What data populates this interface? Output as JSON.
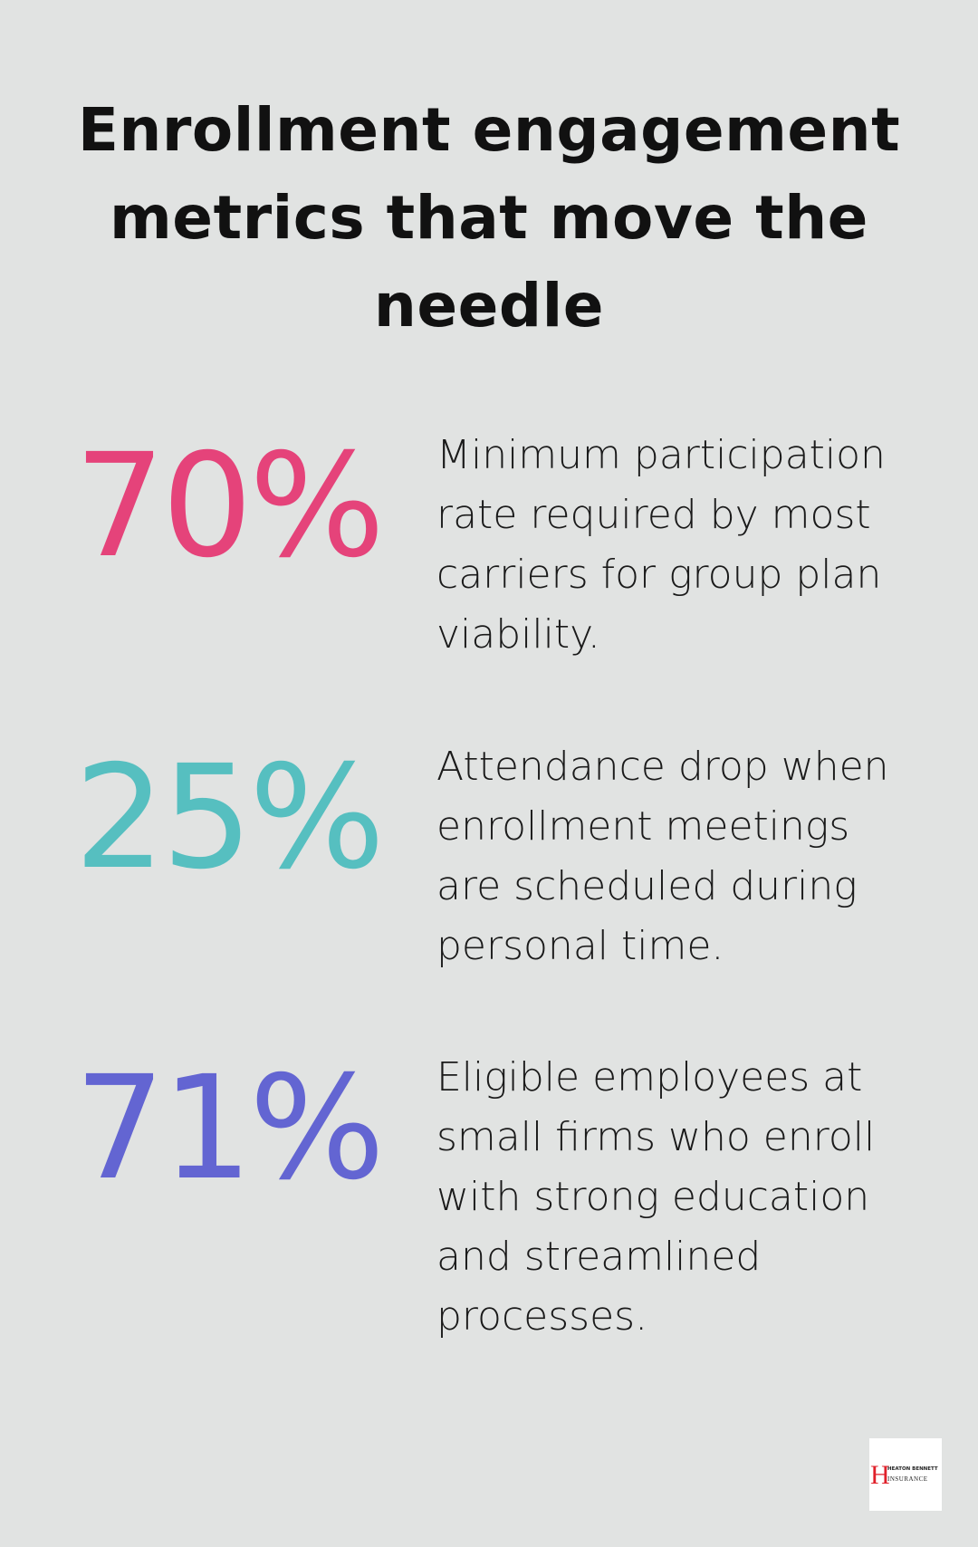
{
  "title": "Enrollment engagement metrics that move the needle",
  "stats": [
    {
      "value": "70%",
      "color": "#e5437a",
      "description": "Minimum participation rate required by most carriers for group plan viability."
    },
    {
      "value": "25%",
      "color": "#56bfc0",
      "description": "Attendance drop when enrollment meetings are scheduled during personal time."
    },
    {
      "value": "71%",
      "color": "#6365d2",
      "description": "Eligible employees at small firms who enroll with strong education and streamlined processes."
    }
  ],
  "logo": {
    "line1": "HEATON BENNETT",
    "line2": "INSURANCE",
    "letter": "H"
  }
}
